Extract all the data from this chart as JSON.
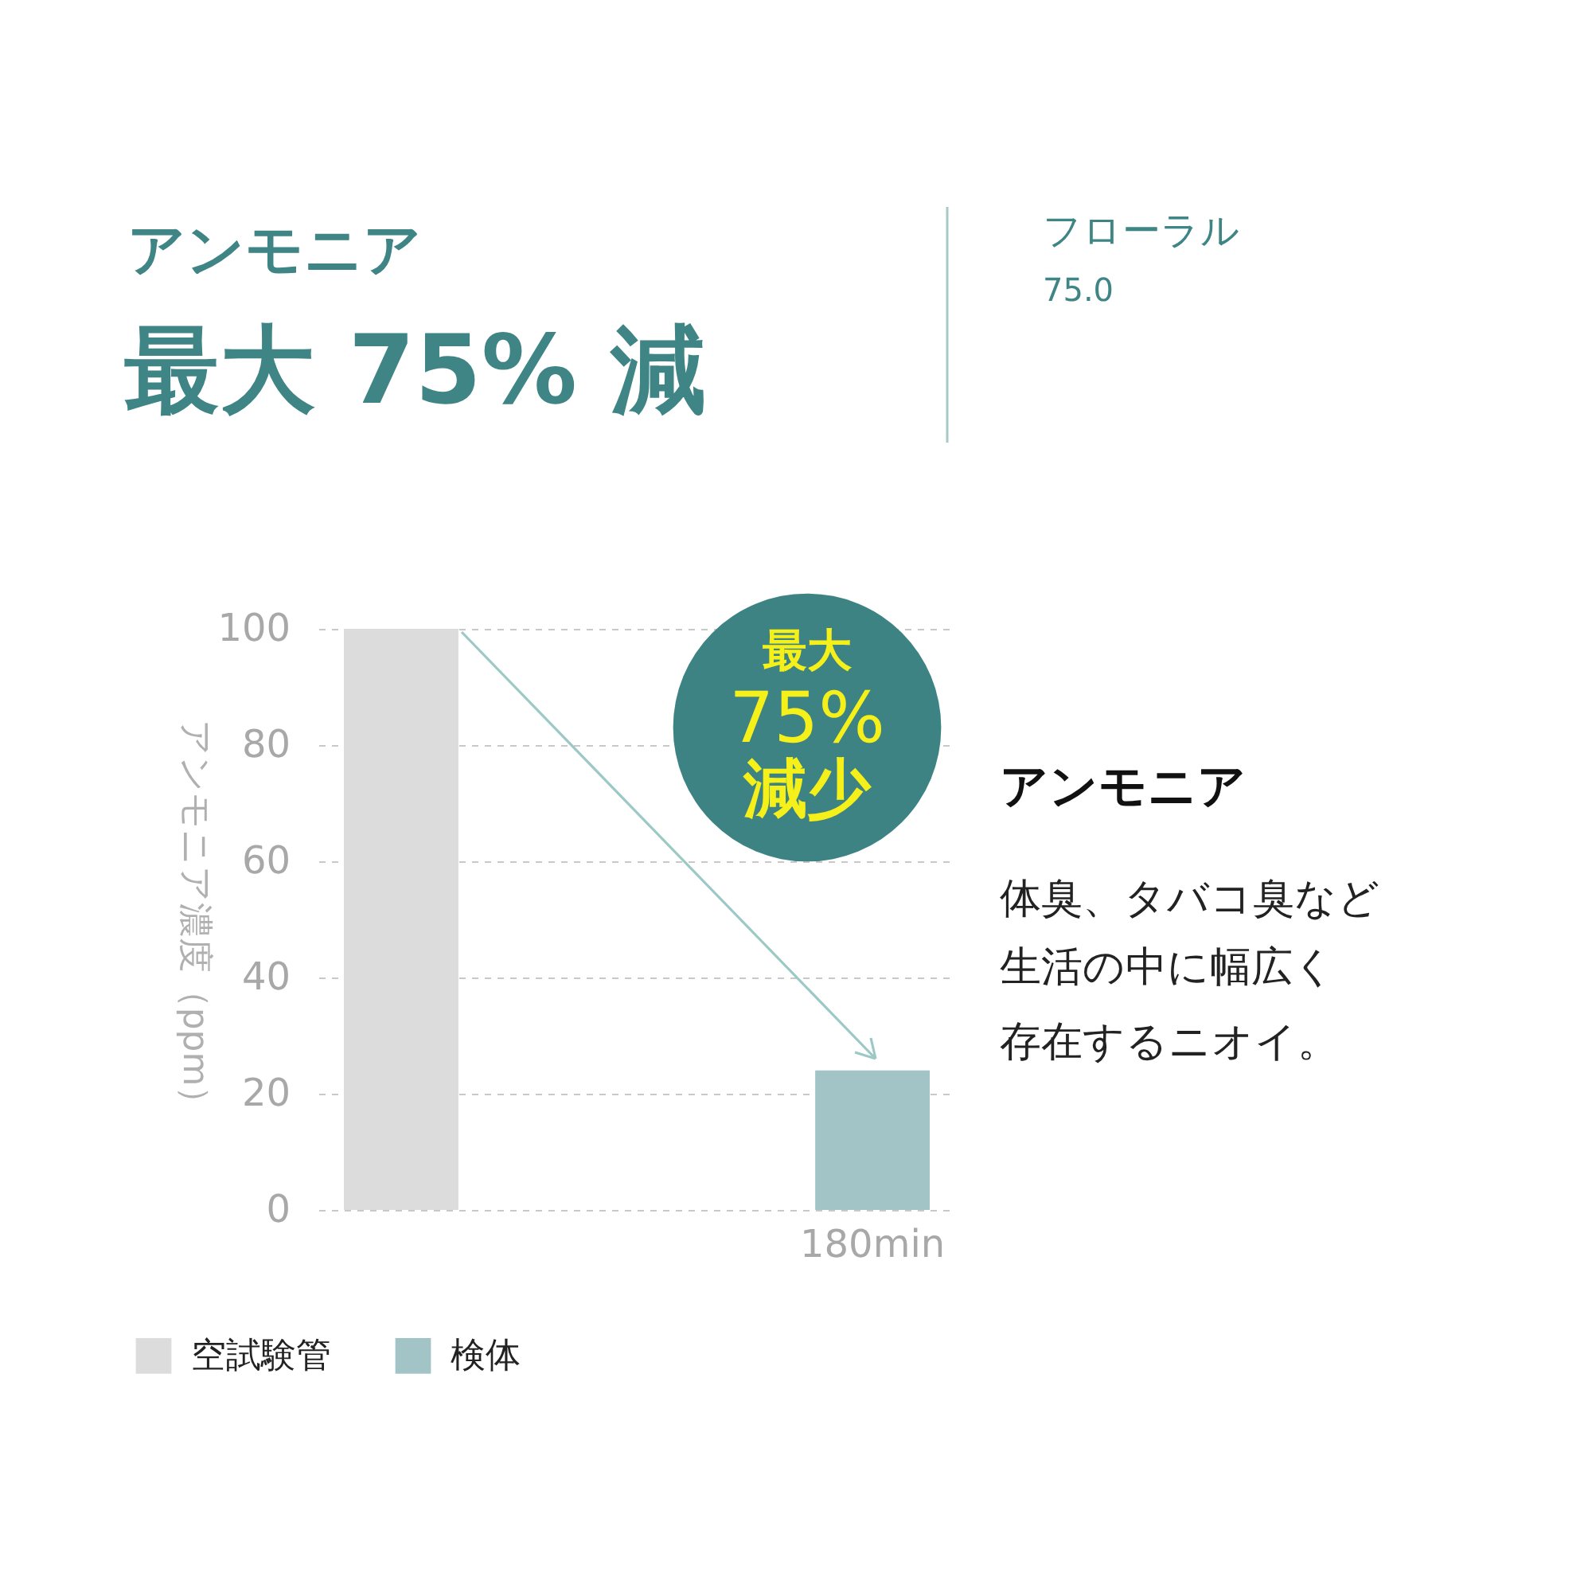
{
  "chart_data": {
    "type": "bar",
    "title": "アンモニア",
    "subtitle": "最大 75% 減",
    "ylabel": "アンモニア濃度（ppm）",
    "categories": [
      null,
      "180min"
    ],
    "series": [
      {
        "name": "空試験管",
        "color": "#dcdcdc",
        "values": [
          100,
          null
        ]
      },
      {
        "name": "検体",
        "color": "#a3c4c6",
        "values": [
          null,
          24
        ]
      }
    ],
    "ylim": [
      0,
      100
    ],
    "yticks": [
      0,
      20,
      40,
      60,
      80,
      100
    ],
    "grid": "y",
    "legend": "bottom",
    "annotations": [
      "フローラル",
      "75.0",
      "最大",
      "75%",
      "減少",
      "アンモニア",
      "体臭、タバコ臭など",
      "生活の中に幅広く",
      "存在するニオイ。"
    ]
  }
}
